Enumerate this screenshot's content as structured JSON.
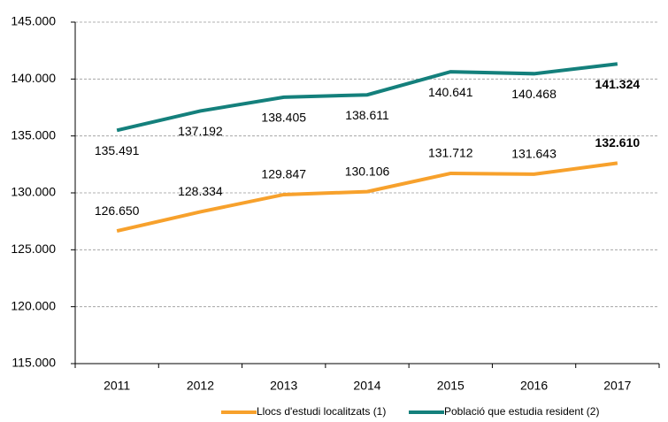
{
  "chart_data": {
    "type": "line",
    "categories": [
      "2011",
      "2012",
      "2013",
      "2014",
      "2015",
      "2016",
      "2017"
    ],
    "series": [
      {
        "name": "Llocs d'estudi localitzats (1)",
        "color": "#f7a12c",
        "values": [
          126650,
          128334,
          129847,
          130106,
          131712,
          131643,
          132610
        ],
        "value_labels": [
          "126.650",
          "128.334",
          "129.847",
          "130.106",
          "131.712",
          "131.643",
          "132.610"
        ]
      },
      {
        "name": "Població que estudia resident (2)",
        "color": "#14807c",
        "values": [
          135491,
          137192,
          138405,
          138611,
          140641,
          140468,
          141324
        ],
        "value_labels": [
          "135.491",
          "137.192",
          "138.405",
          "138.611",
          "140.641",
          "140.468",
          "141.324"
        ]
      }
    ],
    "ylim": [
      115000,
      145000
    ],
    "yticks": [
      {
        "value": 115000,
        "label": "115.000"
      },
      {
        "value": 120000,
        "label": "120.000"
      },
      {
        "value": 125000,
        "label": "125.000"
      },
      {
        "value": 130000,
        "label": "130.000"
      },
      {
        "value": 135000,
        "label": "135.000"
      },
      {
        "value": 140000,
        "label": "140.000"
      },
      {
        "value": 145000,
        "label": "145.000"
      }
    ],
    "grid": true
  }
}
